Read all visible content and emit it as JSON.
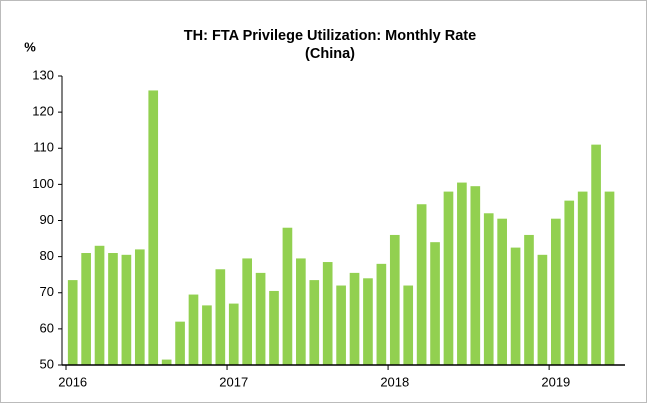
{
  "chart_data": {
    "type": "bar",
    "title": [
      "TH: FTA Privilege Utilization: Monthly Rate",
      "(China)"
    ],
    "y_label": "%",
    "categories": [
      "2016",
      null,
      null,
      null,
      null,
      null,
      null,
      null,
      null,
      null,
      null,
      null,
      "2017",
      null,
      null,
      null,
      null,
      null,
      null,
      null,
      null,
      null,
      null,
      null,
      "2018",
      null,
      null,
      null,
      null,
      null,
      null,
      null,
      null,
      null,
      null,
      null,
      "2019",
      null,
      null,
      null,
      null
    ],
    "values": [
      73.5,
      81,
      83,
      81,
      80.5,
      82,
      126,
      51.5,
      62,
      69.5,
      66.5,
      76.5,
      67,
      79.5,
      75.5,
      70.5,
      88,
      79.5,
      73.5,
      78.5,
      72,
      75.5,
      74,
      78,
      86,
      72,
      94.5,
      84,
      98,
      100.5,
      99.5,
      92,
      90.5,
      82.5,
      86,
      80.5,
      90.5,
      95.5,
      98,
      111,
      98
    ],
    "color": "#92d050",
    "ylim": [
      50,
      130
    ],
    "yticks": [
      50,
      60,
      70,
      80,
      90,
      100,
      110,
      120,
      130
    ],
    "grid": false
  }
}
